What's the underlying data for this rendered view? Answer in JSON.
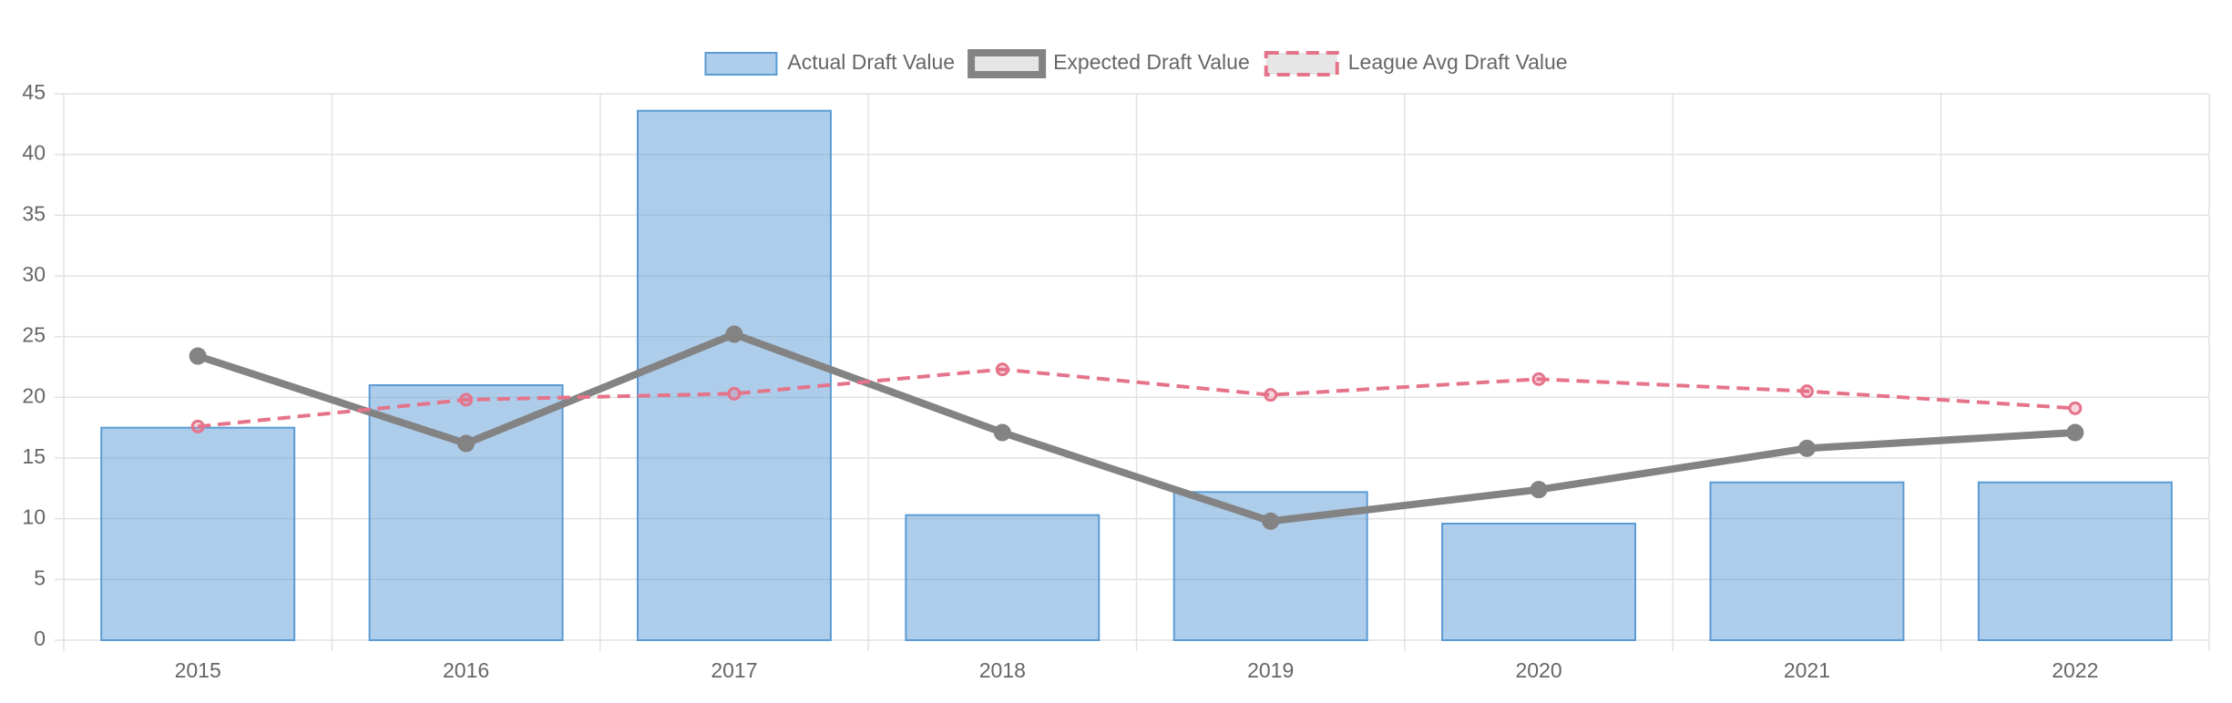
{
  "chart_data": {
    "type": "bar",
    "categories": [
      "2015",
      "2016",
      "2017",
      "2018",
      "2019",
      "2020",
      "2021",
      "2022"
    ],
    "series": [
      {
        "name": "Actual Draft Value",
        "type": "bar",
        "color": "#5b9bd5",
        "values": [
          17.5,
          21,
          43.6,
          10.3,
          12.2,
          9.6,
          13,
          13
        ]
      },
      {
        "name": "Expected Draft Value",
        "type": "line",
        "color": "#838383",
        "values": [
          23.4,
          16.2,
          25.2,
          17.1,
          9.8,
          12.4,
          15.8,
          17.1
        ]
      },
      {
        "name": "League Avg Draft Value",
        "type": "line",
        "dashed": true,
        "color": "#e5738a",
        "values": [
          17.6,
          19.8,
          20.3,
          22.3,
          20.2,
          21.5,
          20.5,
          19.1
        ]
      }
    ],
    "ylim": [
      0,
      45
    ],
    "yticks": [
      0,
      5,
      10,
      15,
      20,
      25,
      30,
      35,
      40,
      45
    ],
    "grid": true,
    "legend": "top"
  }
}
